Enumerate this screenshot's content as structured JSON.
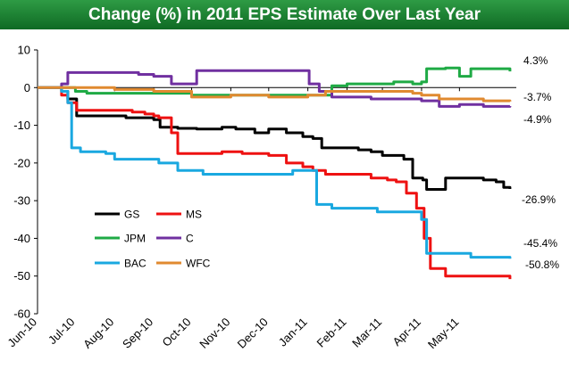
{
  "chart_data": {
    "type": "line",
    "title": "Change (%) in 2011 EPS Estimate Over Last Year",
    "xlabel": "",
    "ylabel": "",
    "ylim": [
      -60,
      10
    ],
    "yticks": [
      10,
      0,
      -10,
      -20,
      -30,
      -40,
      -50,
      -60
    ],
    "xlim": [
      "2010-06-01",
      "2011-06-15"
    ],
    "xticks": [
      {
        "date": "2010-06-01",
        "label": "Jun-10"
      },
      {
        "date": "2010-07-01",
        "label": "Jul-10"
      },
      {
        "date": "2010-08-01",
        "label": "Aug-10"
      },
      {
        "date": "2010-09-01",
        "label": "Sep-10"
      },
      {
        "date": "2010-10-01",
        "label": "Oct-10"
      },
      {
        "date": "2010-11-01",
        "label": "Nov-10"
      },
      {
        "date": "2010-12-01",
        "label": "Dec-10"
      },
      {
        "date": "2011-01-01",
        "label": "Jan-11"
      },
      {
        "date": "2011-02-01",
        "label": "Feb-11"
      },
      {
        "date": "2011-03-01",
        "label": "Mar-11"
      },
      {
        "date": "2011-04-01",
        "label": "Apr-11"
      },
      {
        "date": "2011-05-01",
        "label": "May-11"
      }
    ],
    "grid": false,
    "legend": "bottom-left",
    "series": [
      {
        "name": "GS",
        "color": "#000000",
        "end_label": "-26.9%",
        "x": [
          "2010-06-01",
          "2010-06-20",
          "2010-06-25",
          "2010-07-02",
          "2010-07-05",
          "2010-07-25",
          "2010-08-10",
          "2010-08-28",
          "2010-09-01",
          "2010-09-06",
          "2010-09-20",
          "2010-10-05",
          "2010-10-25",
          "2010-11-05",
          "2010-11-20",
          "2010-12-01",
          "2010-12-15",
          "2010-12-28",
          "2011-01-05",
          "2011-01-12",
          "2011-01-25",
          "2011-02-10",
          "2011-02-20",
          "2011-03-01",
          "2011-03-10",
          "2011-03-18",
          "2011-03-25",
          "2011-04-02",
          "2011-04-05",
          "2011-04-20",
          "2011-05-05",
          "2011-05-20",
          "2011-05-30",
          "2011-06-05",
          "2011-06-10"
        ],
        "values": [
          0,
          -1,
          -3,
          -7.5,
          -7.5,
          -7.5,
          -8,
          -8,
          -8.5,
          -10.5,
          -10.8,
          -11,
          -10.5,
          -11,
          -12,
          -11,
          -12,
          -13,
          -13.5,
          -16,
          -16,
          -16.5,
          -17,
          -18,
          -18,
          -19,
          -24,
          -24.5,
          -27,
          -24,
          -24,
          -24.5,
          -25,
          -26.5,
          -26.9
        ]
      },
      {
        "name": "MS",
        "color": "#ee1111",
        "end_label": "-50.8%",
        "x": [
          "2010-06-01",
          "2010-06-20",
          "2010-06-25",
          "2010-07-02",
          "2010-07-20",
          "2010-08-15",
          "2010-08-25",
          "2010-09-01",
          "2010-09-05",
          "2010-09-15",
          "2010-09-20",
          "2010-10-05",
          "2010-10-25",
          "2010-11-10",
          "2010-12-01",
          "2010-12-15",
          "2010-12-28",
          "2011-01-05",
          "2011-01-15",
          "2011-02-05",
          "2011-02-20",
          "2011-03-05",
          "2011-03-12",
          "2011-03-20",
          "2011-03-28",
          "2011-04-03",
          "2011-04-08",
          "2011-04-20",
          "2011-05-01",
          "2011-05-20",
          "2011-06-10"
        ],
        "values": [
          0,
          -2,
          -4,
          -6,
          -6,
          -6.5,
          -7,
          -7.5,
          -8,
          -12,
          -17.5,
          -17.5,
          -17,
          -17.5,
          -18,
          -20,
          -21,
          -22,
          -23,
          -23,
          -24,
          -24.5,
          -25,
          -28,
          -32,
          -40,
          -48,
          -50,
          -50,
          -50,
          -50.8
        ]
      },
      {
        "name": "JPM",
        "color": "#1faa45",
        "end_label": "4.3%",
        "x": [
          "2010-06-01",
          "2010-07-01",
          "2010-07-10",
          "2010-08-01",
          "2010-09-01",
          "2010-10-01",
          "2010-11-01",
          "2010-12-01",
          "2011-01-01",
          "2011-01-20",
          "2011-02-01",
          "2011-02-20",
          "2011-03-10",
          "2011-03-25",
          "2011-04-01",
          "2011-04-05",
          "2011-04-20",
          "2011-05-01",
          "2011-05-10",
          "2011-05-20",
          "2011-06-10"
        ],
        "values": [
          0,
          -1,
          -1.5,
          -1.5,
          -1.5,
          -2,
          -2,
          -2,
          -2,
          0.5,
          1,
          1,
          1.5,
          1,
          1.5,
          5,
          5.2,
          3,
          5,
          5,
          4.3
        ]
      },
      {
        "name": "C",
        "color": "#7030a0",
        "end_label": "-4.9%",
        "x": [
          "2010-06-01",
          "2010-06-20",
          "2010-06-25",
          "2010-07-10",
          "2010-08-01",
          "2010-08-20",
          "2010-09-01",
          "2010-09-15",
          "2010-10-01",
          "2010-10-05",
          "2010-11-01",
          "2010-12-01",
          "2010-12-28",
          "2011-01-02",
          "2011-01-10",
          "2011-01-20",
          "2011-02-01",
          "2011-02-20",
          "2011-03-01",
          "2011-03-15",
          "2011-04-01",
          "2011-04-15",
          "2011-05-01",
          "2011-05-20",
          "2011-06-10"
        ],
        "values": [
          0,
          1,
          4,
          4,
          4,
          3.5,
          3,
          1,
          1,
          4.5,
          4.5,
          4.5,
          4.5,
          1,
          -1,
          -2.5,
          -2.5,
          -3,
          -3,
          -3,
          -3.5,
          -5,
          -4.5,
          -5,
          -4.9
        ]
      },
      {
        "name": "BAC",
        "color": "#1aa8e0",
        "end_label": "-45.4%",
        "x": [
          "2010-06-01",
          "2010-06-20",
          "2010-06-25",
          "2010-06-28",
          "2010-07-05",
          "2010-07-25",
          "2010-08-01",
          "2010-08-25",
          "2010-09-05",
          "2010-09-20",
          "2010-10-10",
          "2010-11-01",
          "2010-12-01",
          "2010-12-20",
          "2011-01-01",
          "2011-01-08",
          "2011-01-20",
          "2011-02-10",
          "2011-02-25",
          "2011-03-10",
          "2011-03-20",
          "2011-04-01",
          "2011-04-05",
          "2011-04-20",
          "2011-05-10",
          "2011-06-10"
        ],
        "values": [
          0,
          -1,
          -4,
          -16,
          -17,
          -17.5,
          -19,
          -19,
          -20,
          -22,
          -23,
          -23,
          -23,
          -22,
          -22,
          -31,
          -32,
          -32,
          -33,
          -33,
          -33,
          -35,
          -44,
          -44,
          -45,
          -45.4
        ]
      },
      {
        "name": "WFC",
        "color": "#e08a30",
        "end_label": "-3.7%",
        "x": [
          "2010-06-01",
          "2010-07-01",
          "2010-08-01",
          "2010-09-01",
          "2010-10-01",
          "2010-11-01",
          "2010-12-01",
          "2011-01-01",
          "2011-01-15",
          "2011-02-01",
          "2011-02-20",
          "2011-03-10",
          "2011-03-25",
          "2011-04-01",
          "2011-04-15",
          "2011-05-01",
          "2011-05-20",
          "2011-06-10"
        ],
        "values": [
          0,
          0,
          -0.5,
          -1,
          -2.5,
          -2,
          -2.5,
          -2,
          -1,
          -1,
          -1,
          -1,
          -1.5,
          -2,
          -3,
          -3,
          -3.5,
          -3.7
        ]
      }
    ]
  }
}
